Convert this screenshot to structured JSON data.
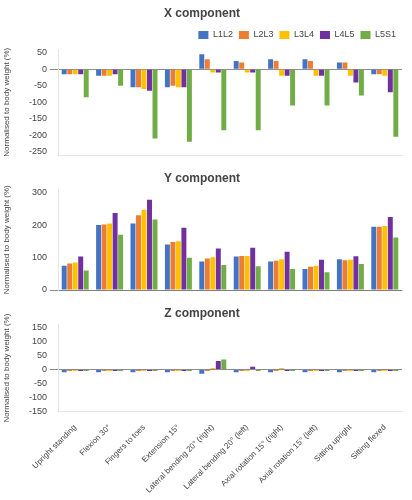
{
  "chart_data": [
    {
      "type": "bar",
      "title": "X component",
      "categories": [
        null,
        null,
        null,
        null,
        null,
        null,
        null,
        null,
        null,
        null
      ],
      "series": [
        {
          "name": "L1L2",
          "color": "#4472c4",
          "values": [
            -15,
            -20,
            -55,
            -55,
            45,
            25,
            30,
            30,
            20,
            -15
          ]
        },
        {
          "name": "L2L3",
          "color": "#ed7d31",
          "values": [
            -15,
            -20,
            -55,
            -50,
            30,
            20,
            25,
            25,
            20,
            -15
          ]
        },
        {
          "name": "L3L4",
          "color": "#ffc000",
          "values": [
            -15,
            -20,
            -60,
            -55,
            -10,
            -10,
            -20,
            -20,
            -20,
            -20
          ]
        },
        {
          "name": "L4L5",
          "color": "#7030a0",
          "values": [
            -15,
            -15,
            -65,
            -55,
            -10,
            -10,
            -20,
            -20,
            -40,
            -70
          ]
        },
        {
          "name": "L5S1",
          "color": "#70ad47",
          "values": [
            -85,
            -50,
            -210,
            -220,
            -185,
            -185,
            -110,
            -110,
            -80,
            -205
          ]
        }
      ],
      "ylabel": "Normalised to body weight (%)",
      "ylim": [
        -260,
        60
      ],
      "yticks": [
        50,
        0,
        -50,
        -100,
        -150,
        -200,
        -250
      ],
      "grid": false,
      "legend": "upper right"
    },
    {
      "type": "bar",
      "title": "Y component",
      "categories": [
        null,
        null,
        null,
        null,
        null,
        null,
        null,
        null,
        null,
        null
      ],
      "series": [
        {
          "name": "L1L2",
          "color": "#4472c4",
          "values": [
            75,
            200,
            205,
            140,
            88,
            103,
            88,
            65,
            95,
            195
          ]
        },
        {
          "name": "L2L3",
          "color": "#ed7d31",
          "values": [
            82,
            202,
            230,
            148,
            97,
            105,
            90,
            72,
            92,
            195
          ]
        },
        {
          "name": "L3L4",
          "color": "#ffc000",
          "values": [
            85,
            205,
            247,
            150,
            101,
            105,
            95,
            75,
            93,
            197
          ]
        },
        {
          "name": "L4L5",
          "color": "#7030a0",
          "values": [
            103,
            237,
            278,
            192,
            128,
            130,
            118,
            93,
            104,
            225
          ]
        },
        {
          "name": "L5S1",
          "color": "#70ad47",
          "values": [
            60,
            170,
            217,
            99,
            77,
            73,
            65,
            55,
            80,
            162
          ]
        }
      ],
      "ylabel": "Normalised to body weight (%)",
      "ylim": [
        0,
        310
      ],
      "yticks": [
        0,
        100,
        200,
        300
      ],
      "grid": false,
      "legend": false
    },
    {
      "type": "bar",
      "title": "Z component",
      "categories": [
        "Upright standing",
        "Flexion 30°",
        "Fingers to toes",
        "Extension 15°",
        "Lateral bending 20° (right)",
        "Lateral bending 20° (left)",
        "Axial rotation 15° (right)",
        "Axial rotation 15° (left)",
        "Sitting upright",
        "Sitting flexed"
      ],
      "series": [
        {
          "name": "L1L2",
          "color": "#4472c4",
          "values": [
            -10,
            -10,
            -10,
            -10,
            -15,
            -10,
            -10,
            -10,
            -10,
            -10
          ]
        },
        {
          "name": "L2L3",
          "color": "#ed7d31",
          "values": [
            -5,
            -5,
            -5,
            -5,
            -5,
            -5,
            -5,
            -5,
            -5,
            -5
          ]
        },
        {
          "name": "L3L4",
          "color": "#ffc000",
          "values": [
            -5,
            -5,
            -5,
            -5,
            5,
            -5,
            5,
            -5,
            -5,
            -5
          ]
        },
        {
          "name": "L4L5",
          "color": "#7030a0",
          "values": [
            -5,
            -5,
            -5,
            -5,
            30,
            10,
            -5,
            -5,
            -5,
            -5
          ]
        },
        {
          "name": "L5S1",
          "color": "#70ad47",
          "values": [
            -5,
            -5,
            -5,
            -5,
            35,
            -5,
            -5,
            -5,
            -5,
            -5
          ]
        }
      ],
      "ylabel": "Normalised to body weight (%)",
      "ylim": [
        -150,
        160
      ],
      "yticks": [
        -150,
        -100,
        -50,
        0,
        50,
        100,
        150
      ],
      "grid": false,
      "legend": false
    }
  ]
}
